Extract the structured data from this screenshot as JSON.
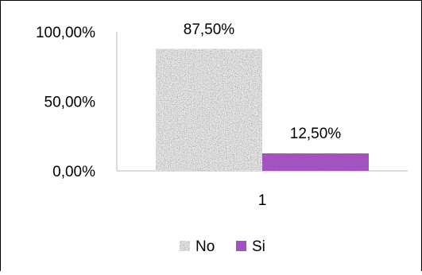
{
  "chart_data": {
    "type": "bar",
    "categories": [
      "1"
    ],
    "series": [
      {
        "name": "No",
        "values": [
          87.5
        ],
        "label": "87,50%",
        "color": "#a8a8a8",
        "fill": "noise-gray"
      },
      {
        "name": "Si",
        "values": [
          12.5
        ],
        "label": "12,50%",
        "color": "#4b1870",
        "fill": "noise-purple"
      }
    ],
    "y_ticks": [
      {
        "value": 0,
        "label": "0,00%"
      },
      {
        "value": 50,
        "label": "50,00%"
      },
      {
        "value": 100,
        "label": "100,00%"
      }
    ],
    "ylim": [
      0,
      100
    ],
    "grid": false,
    "legend_position": "bottom"
  }
}
